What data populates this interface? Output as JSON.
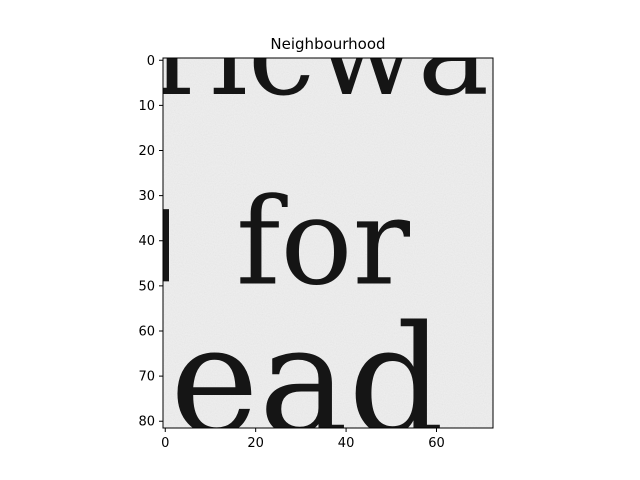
{
  "chart_data": {
    "type": "heatmap",
    "title": "Neighbourhood",
    "xlabel": "",
    "ylabel": "",
    "colormap": "gray",
    "grid": false,
    "legend": "none",
    "xlim": [
      -0.5,
      72.5
    ],
    "ylim": [
      81.5,
      -0.5
    ],
    "x_ticks": [
      0,
      20,
      40,
      60
    ],
    "y_ticks": [
      0,
      10,
      20,
      30,
      40,
      50,
      60,
      70,
      80
    ],
    "colors": {
      "paper": "#efefef",
      "ink": "#151515",
      "frame": "#000000"
    },
    "image_text_lines": [
      {
        "text": "ricwa",
        "baseline_y": 7.5
      },
      {
        "text": "for",
        "baseline_y": 49.5
      },
      {
        "text": "ead",
        "baseline_y": 82.5
      }
    ]
  }
}
